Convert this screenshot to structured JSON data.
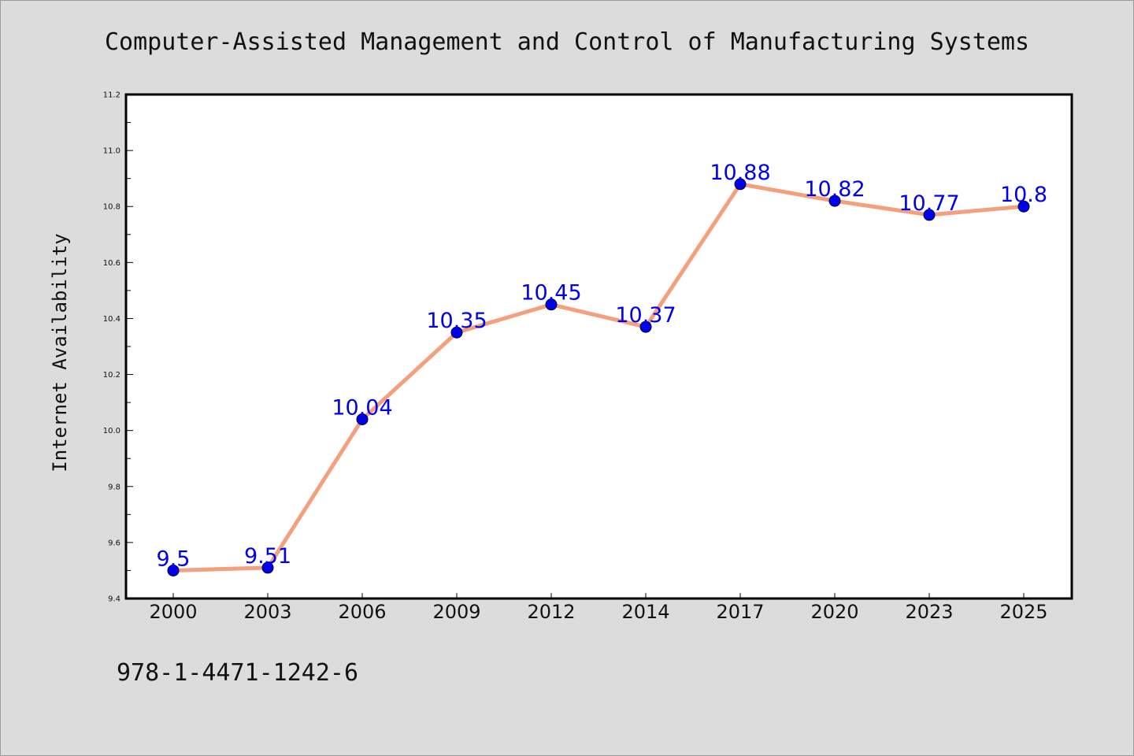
{
  "chart_data": {
    "type": "line",
    "title": "Computer-Assisted Management and Control of Manufacturing Systems",
    "xlabel": "",
    "ylabel": "Internet Availability",
    "categories": [
      "2000",
      "2003",
      "2006",
      "2009",
      "2012",
      "2014",
      "2017",
      "2020",
      "2023",
      "2025"
    ],
    "series": [
      {
        "values": [
          9.5,
          9.51,
          10.04,
          10.35,
          10.45,
          10.37,
          10.88,
          10.82,
          10.77,
          10.8
        ],
        "data_labels": [
          "9.5",
          "9.51",
          "10.04",
          "10.35",
          "10.45",
          "10.37",
          "10.88",
          "10.82",
          "10.77",
          "10.8"
        ],
        "line_color": "#f4a07e",
        "marker_color": "#0000ee",
        "label_color": "#0000ee"
      }
    ],
    "ylim": [
      9.4,
      11.2
    ],
    "yticks": [
      "9.4",
      "9.6",
      "9.8",
      "10.0",
      "10.2",
      "10.4",
      "10.6",
      "10.8",
      "11.0",
      "11.2"
    ],
    "grid": false,
    "background": "#dcdcdc",
    "plot_background": "#ffffff"
  },
  "footer": {
    "isbn": "978-1-4471-1242-6"
  }
}
